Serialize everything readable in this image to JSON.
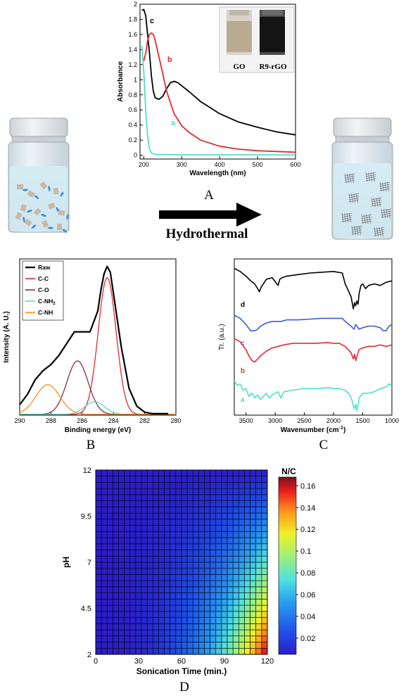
{
  "scheme": {
    "arrow_label": "Hydrothermal",
    "photo_labels": [
      "GO",
      "R9-rGO"
    ]
  },
  "panels": {
    "A": "A",
    "B": "B",
    "C": "C",
    "D": "D"
  },
  "colors": {
    "black": "#000000",
    "red": "#e8282e",
    "cyan": "#4fe0c6",
    "maroon": "#8c2a4a",
    "orange": "#ff8c1a",
    "blue": "#3a5bd9",
    "vial_glass": "#dfe9ee",
    "vial_cap": "#e6e9eb"
  },
  "chart_data": [
    {
      "id": "A",
      "type": "line",
      "xlabel": "Wavelength (nm)",
      "ylabel": "Absorbance",
      "xlim": [
        190,
        600
      ],
      "ylim": [
        -0.05,
        2.0
      ],
      "xticks": [
        200,
        300,
        400,
        500,
        600
      ],
      "yticks": [
        0,
        0.2,
        0.4,
        0.6,
        0.8,
        1,
        1.2,
        1.4,
        1.6,
        1.8,
        2
      ],
      "series": [
        {
          "name": "c",
          "color": "#000000",
          "x": [
            195,
            200,
            205,
            210,
            215,
            220,
            225,
            230,
            240,
            250,
            260,
            270,
            280,
            290,
            300,
            320,
            350,
            400,
            450,
            500,
            550,
            600
          ],
          "y": [
            1.92,
            1.93,
            1.85,
            1.6,
            1.35,
            1.05,
            0.85,
            0.76,
            0.74,
            0.78,
            0.88,
            0.96,
            0.98,
            0.96,
            0.92,
            0.84,
            0.71,
            0.55,
            0.44,
            0.37,
            0.31,
            0.27
          ]
        },
        {
          "name": "b",
          "color": "#e8282e",
          "x": [
            200,
            205,
            210,
            215,
            220,
            225,
            230,
            240,
            250,
            260,
            280,
            300,
            320,
            350,
            400,
            450,
            500,
            550,
            600
          ],
          "y": [
            1.25,
            1.35,
            1.52,
            1.6,
            1.62,
            1.6,
            1.52,
            1.3,
            1.08,
            0.85,
            0.55,
            0.39,
            0.3,
            0.2,
            0.12,
            0.08,
            0.06,
            0.05,
            0.04
          ]
        },
        {
          "name": "a",
          "color": "#4fe0c6",
          "x": [
            195,
            200,
            205,
            210,
            215,
            220,
            230,
            250,
            300,
            400,
            500,
            600
          ],
          "y": [
            1.45,
            1.1,
            0.6,
            0.25,
            0.08,
            0.03,
            0.01,
            0.01,
            0.005,
            0.005,
            0.005,
            0.005
          ]
        }
      ]
    },
    {
      "id": "B",
      "type": "line",
      "xlabel": "Binding energy (eV)",
      "ylabel": "Intensity (A. U.)",
      "xlim": [
        290,
        280
      ],
      "ylim": [
        0,
        1.05
      ],
      "xticks": [
        290,
        288,
        286,
        284,
        282,
        280
      ],
      "legend": [
        "Raw",
        "C-C",
        "C-O",
        "C-NH2",
        "C-NH"
      ],
      "series": [
        {
          "name": "Raw",
          "color": "#000000",
          "x": [
            290,
            289.5,
            289,
            288.5,
            288,
            287.5,
            287,
            286.5,
            286,
            285.5,
            285,
            284.8,
            284.6,
            284.4,
            284.2,
            284,
            283.5,
            283,
            282.5,
            282,
            281.5,
            281,
            280.5
          ],
          "y": [
            0.07,
            0.14,
            0.24,
            0.3,
            0.34,
            0.4,
            0.48,
            0.56,
            0.56,
            0.56,
            0.7,
            0.84,
            0.95,
            1.0,
            0.96,
            0.82,
            0.46,
            0.18,
            0.06,
            0.02,
            0.01,
            0.01,
            0.01
          ]
        },
        {
          "name": "C-C",
          "color": "#e8282e",
          "center": 284.4,
          "height": 0.92,
          "fwhm": 1.35
        },
        {
          "name": "C-O",
          "color": "#8c2a4a",
          "center": 286.3,
          "height": 0.36,
          "fwhm": 1.6
        },
        {
          "name": "C-NH2",
          "color": "#4fe0c6",
          "center": 285.2,
          "height": 0.085,
          "fwhm": 1.5
        },
        {
          "name": "C-NH",
          "color": "#ff8c1a",
          "center": 288.2,
          "height": 0.2,
          "fwhm": 1.8
        }
      ]
    },
    {
      "id": "C",
      "type": "line",
      "xlabel": "Wavenumber (cm",
      "xlabel_sup": "-1",
      "xlabel_tail": ")",
      "ylabel": "Tr. (a.u.)",
      "xlim": [
        3700,
        1000
      ],
      "xticks": [
        3500,
        3000,
        2500,
        2000,
        1500,
        1000
      ],
      "series": [
        {
          "name": "d",
          "color": "#000000",
          "offset": 0.86,
          "x": [
            3700,
            3600,
            3500,
            3420,
            3350,
            3300,
            3270,
            3240,
            3150,
            3050,
            2950,
            2920,
            2880,
            2800,
            2600,
            2400,
            2200,
            2000,
            1850,
            1800,
            1700,
            1660,
            1640,
            1620,
            1600,
            1580,
            1560,
            1530,
            1500,
            1450,
            1400,
            1300,
            1200,
            1100,
            1000
          ],
          "y": [
            0.08,
            0.06,
            0.03,
            0.0,
            -0.02,
            -0.05,
            -0.07,
            -0.04,
            0.01,
            0.02,
            -0.03,
            0.01,
            0.02,
            0.03,
            0.04,
            0.05,
            0.055,
            0.06,
            0.05,
            -0.02,
            -0.1,
            -0.18,
            -0.14,
            -0.16,
            -0.13,
            -0.15,
            -0.08,
            -0.03,
            -0.02,
            -0.05,
            -0.03,
            -0.02,
            -0.03,
            -0.01,
            0.0
          ]
        },
        {
          "name": "c",
          "color": "#3a5bd9",
          "offset": 0.6,
          "x": [
            3700,
            3600,
            3500,
            3420,
            3350,
            3300,
            3250,
            3150,
            3050,
            2950,
            2900,
            2800,
            2600,
            2400,
            2200,
            2000,
            1850,
            1800,
            1700,
            1650,
            1620,
            1560,
            1500,
            1400,
            1300,
            1200,
            1150,
            1100,
            1050,
            1000
          ],
          "y": [
            0.04,
            0.02,
            -0.02,
            -0.06,
            -0.06,
            -0.05,
            -0.03,
            -0.01,
            0.0,
            0.0,
            0.0,
            0.01,
            0.01,
            0.015,
            0.02,
            0.02,
            0.02,
            0.0,
            -0.03,
            -0.05,
            -0.02,
            -0.05,
            -0.04,
            -0.03,
            -0.03,
            -0.04,
            -0.06,
            -0.06,
            -0.03,
            -0.02
          ]
        },
        {
          "name": "b",
          "color": "#e8282e",
          "offset": 0.44,
          "x": [
            3700,
            3600,
            3500,
            3450,
            3400,
            3350,
            3300,
            3250,
            3150,
            3050,
            2950,
            2850,
            2700,
            2500,
            2300,
            2100,
            2000,
            1900,
            1800,
            1700,
            1660,
            1640,
            1620,
            1580,
            1560,
            1500,
            1400,
            1300,
            1200,
            1100,
            1000
          ],
          "y": [
            0.05,
            0.03,
            -0.02,
            -0.06,
            -0.09,
            -0.1,
            -0.08,
            -0.06,
            -0.03,
            -0.01,
            0.0,
            0.01,
            0.02,
            0.02,
            0.02,
            0.025,
            0.02,
            0.02,
            0.0,
            -0.04,
            -0.08,
            -0.05,
            -0.09,
            -0.04,
            -0.02,
            -0.01,
            0.0,
            0.0,
            0.01,
            0.0,
            0.01
          ]
        },
        {
          "name": "a",
          "color": "#4fe0c6",
          "offset": 0.17,
          "x": [
            3700,
            3650,
            3600,
            3550,
            3500,
            3450,
            3400,
            3350,
            3300,
            3250,
            3200,
            3150,
            3100,
            3050,
            2950,
            2900,
            2850,
            2700,
            2500,
            2300,
            2100,
            2000,
            1900,
            1800,
            1720,
            1680,
            1650,
            1620,
            1600,
            1580,
            1560,
            1500,
            1400,
            1300,
            1200,
            1100,
            1050,
            1000
          ],
          "y": [
            0.05,
            0.02,
            0.03,
            -0.01,
            0.0,
            -0.05,
            -0.03,
            -0.06,
            -0.04,
            -0.07,
            -0.05,
            -0.03,
            -0.06,
            -0.04,
            -0.02,
            -0.06,
            -0.02,
            -0.01,
            0.0,
            0.0,
            0.005,
            0.0,
            0.0,
            -0.01,
            -0.04,
            -0.08,
            -0.13,
            -0.1,
            -0.14,
            -0.1,
            -0.06,
            -0.03,
            -0.03,
            -0.02,
            0.0,
            0.01,
            0.03,
            0.02
          ]
        }
      ]
    },
    {
      "id": "D",
      "type": "heatmap",
      "xlabel": "Sonication Time (min.)",
      "ylabel": "pH",
      "xlim": [
        0,
        120
      ],
      "ylim": [
        2,
        12
      ],
      "xticks": [
        0,
        30,
        60,
        90,
        120
      ],
      "yticks": [
        2,
        4.5,
        7,
        9.5,
        12
      ],
      "colorbar_title": "N/C",
      "colorbar_ticks": [
        0.02,
        0.04,
        0.06,
        0.08,
        0.1,
        0.12,
        0.14,
        0.16
      ],
      "colorbar_range": [
        0.005,
        0.168
      ],
      "grid_size": [
        30,
        30
      ],
      "model": "N/C = 0.005 + 0.16 * (t/120)^2.8 * (1 - (pH - 2)/10)^1.1"
    }
  ]
}
